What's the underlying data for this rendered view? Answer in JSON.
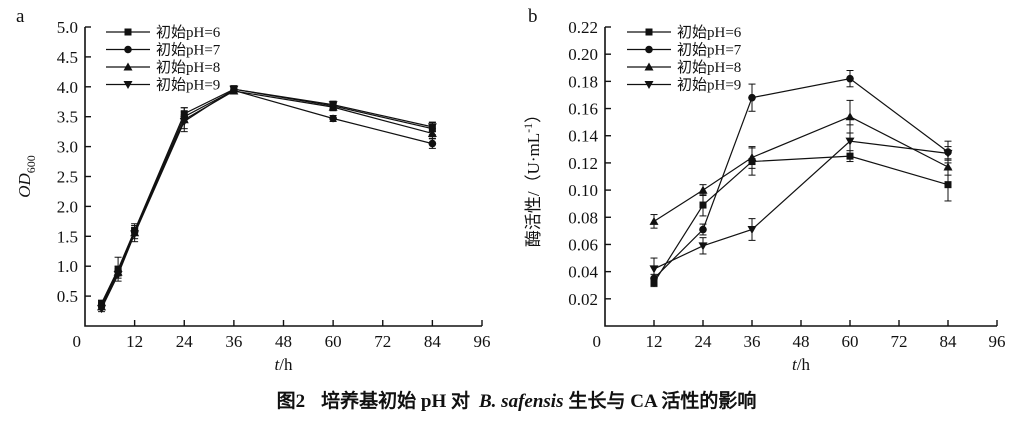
{
  "figure": {
    "caption": {
      "label": "图2",
      "text_before_species": "培养基初始 pH 对",
      "species": "B. safensis",
      "text_after_species": "生长与 CA 活性的影响"
    }
  },
  "chart_data": [
    {
      "id": "panel-a",
      "panel_label": "a",
      "type": "line",
      "x": [
        4,
        8,
        12,
        24,
        36,
        60,
        84
      ],
      "series": [
        {
          "name": "初始pH=6",
          "marker": "square",
          "values": [
            0.38,
            0.95,
            1.6,
            3.55,
            3.96,
            3.68,
            3.3
          ],
          "errors": [
            0.05,
            0.2,
            0.08,
            0.1,
            0.06,
            0.05,
            0.1
          ]
        },
        {
          "name": "初始pH=7",
          "marker": "circle",
          "values": [
            0.35,
            0.92,
            1.58,
            3.5,
            3.94,
            3.47,
            3.05
          ],
          "errors": [
            0.04,
            0.08,
            0.06,
            0.08,
            0.05,
            0.05,
            0.08
          ]
        },
        {
          "name": "初始pH=8",
          "marker": "triangle-up",
          "values": [
            0.32,
            0.9,
            1.56,
            3.45,
            3.93,
            3.66,
            3.22
          ],
          "errors": [
            0.04,
            0.06,
            0.15,
            0.2,
            0.05,
            0.06,
            0.08
          ]
        },
        {
          "name": "初始pH=9",
          "marker": "triangle-down",
          "values": [
            0.29,
            0.86,
            1.54,
            3.42,
            3.96,
            3.7,
            3.33
          ],
          "errors": [
            0.05,
            0.06,
            0.08,
            0.12,
            0.05,
            0.06,
            0.08
          ]
        }
      ],
      "xlabel_parts": [
        {
          "t": "t",
          "italic": true
        },
        {
          "t": "/h"
        }
      ],
      "ylabel_parts": [
        {
          "t": "OD",
          "italic": true
        },
        {
          "t": "600",
          "sub": true
        }
      ],
      "xlim": [
        0,
        96
      ],
      "ylim": [
        0,
        5.0
      ],
      "xticks": [
        12,
        24,
        36,
        48,
        60,
        72,
        84,
        96
      ],
      "yticks": [
        0.5,
        1.0,
        1.5,
        2.0,
        2.5,
        3.0,
        3.5,
        4.0,
        4.5,
        5.0
      ],
      "ytick_decimals": 1,
      "origin_label": "0",
      "legend_position": "top-left",
      "grid": false,
      "color": "#111111"
    },
    {
      "id": "panel-b",
      "panel_label": "b",
      "type": "line",
      "x": [
        12,
        24,
        36,
        60,
        84
      ],
      "series": [
        {
          "name": "初始pH=6",
          "marker": "square",
          "values": [
            0.032,
            0.089,
            0.121,
            0.125,
            0.104
          ],
          "errors": [
            0.003,
            0.008,
            0.01,
            0.004,
            0.012
          ]
        },
        {
          "name": "初始pH=7",
          "marker": "circle",
          "values": [
            0.035,
            0.071,
            0.168,
            0.182,
            0.128
          ],
          "errors": [
            0.003,
            0.004,
            0.01,
            0.006,
            0.008
          ]
        },
        {
          "name": "初始pH=8",
          "marker": "triangle-up",
          "values": [
            0.077,
            0.1,
            0.124,
            0.154,
            0.117
          ],
          "errors": [
            0.005,
            0.004,
            0.008,
            0.012,
            0.006
          ]
        },
        {
          "name": "初始pH=9",
          "marker": "triangle-down",
          "values": [
            0.042,
            0.059,
            0.071,
            0.136,
            0.127
          ],
          "errors": [
            0.008,
            0.006,
            0.008,
            0.012,
            0.005
          ]
        }
      ],
      "xlabel_parts": [
        {
          "t": "t",
          "italic": true
        },
        {
          "t": "/h"
        }
      ],
      "ylabel_parts": [
        {
          "t": "酶活性/（U·mL"
        },
        {
          "t": "-1",
          "sup": true
        },
        {
          "t": "）"
        }
      ],
      "xlim": [
        0,
        96
      ],
      "ylim": [
        0,
        0.22
      ],
      "xticks": [
        12,
        24,
        36,
        48,
        60,
        72,
        84,
        96
      ],
      "yticks": [
        0.02,
        0.04,
        0.06,
        0.08,
        0.1,
        0.12,
        0.14,
        0.16,
        0.18,
        0.2,
        0.22
      ],
      "ytick_decimals": 2,
      "origin_label": "0",
      "legend_position": "top-left",
      "grid": false,
      "color": "#111111"
    }
  ]
}
